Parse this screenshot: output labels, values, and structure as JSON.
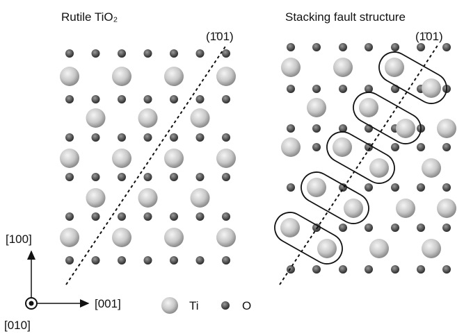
{
  "panels": [
    {
      "title": "Rutile TiO₂",
      "plane": "(1̄01)"
    },
    {
      "title": "Stacking fault structure",
      "plane": "(1̄01)"
    }
  ],
  "axes": {
    "up": "[100]",
    "right": "[001]",
    "out": "[010]"
  },
  "legend": {
    "ti": "Ti",
    "o": "O"
  }
}
